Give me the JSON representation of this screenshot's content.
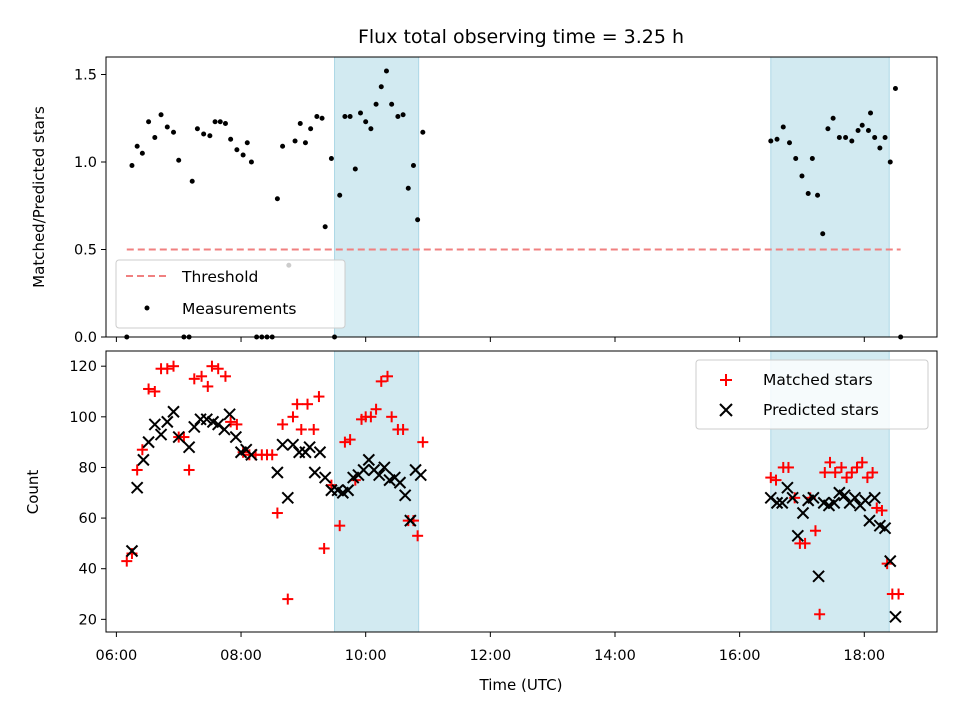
{
  "chart_data": [
    {
      "type": "scatter",
      "title": "Flux total observing time = 3.25 h",
      "xlabel": "",
      "ylabel": "Matched/Predicted stars",
      "xlim": [
        "05:50",
        "19:10"
      ],
      "ylim": [
        0,
        1.6
      ],
      "yticks": [
        "0.0",
        "0.5",
        "1.0",
        "1.5"
      ],
      "grid": false,
      "legend_position": "lower-left",
      "shaded_intervals": [
        [
          "09:30",
          "10:51"
        ],
        [
          "16:30",
          "18:24"
        ]
      ],
      "shade_color": "#add8e6",
      "threshold": {
        "name": "Threshold",
        "value": 0.5,
        "x_range": [
          "06:10",
          "18:35"
        ],
        "color": "#f08080"
      },
      "series": [
        {
          "name": "Measurements",
          "color": "#000000",
          "marker": "dot",
          "points": [
            [
              "06:10",
              0.0
            ],
            [
              "06:15",
              0.98
            ],
            [
              "06:20",
              1.09
            ],
            [
              "06:25",
              1.05
            ],
            [
              "06:31",
              1.23
            ],
            [
              "06:37",
              1.14
            ],
            [
              "06:43",
              1.27
            ],
            [
              "06:49",
              1.2
            ],
            [
              "06:55",
              1.17
            ],
            [
              "07:00",
              1.01
            ],
            [
              "07:05",
              0.0
            ],
            [
              "07:10",
              0.0
            ],
            [
              "07:13",
              0.89
            ],
            [
              "07:18",
              1.19
            ],
            [
              "07:24",
              1.16
            ],
            [
              "07:30",
              1.15
            ],
            [
              "07:35",
              1.23
            ],
            [
              "07:40",
              1.23
            ],
            [
              "07:45",
              1.22
            ],
            [
              "07:50",
              1.13
            ],
            [
              "07:56",
              1.07
            ],
            [
              "08:02",
              1.04
            ],
            [
              "08:06",
              1.11
            ],
            [
              "08:10",
              1.0
            ],
            [
              "08:15",
              0.0
            ],
            [
              "08:20",
              0.0
            ],
            [
              "08:25",
              0.0
            ],
            [
              "08:30",
              0.0
            ],
            [
              "08:35",
              0.79
            ],
            [
              "08:40",
              1.09
            ],
            [
              "08:46",
              0.41
            ],
            [
              "08:52",
              1.12
            ],
            [
              "08:57",
              1.22
            ],
            [
              "09:02",
              1.11
            ],
            [
              "09:07",
              1.19
            ],
            [
              "09:13",
              1.26
            ],
            [
              "09:18",
              1.25
            ],
            [
              "09:21",
              0.63
            ],
            [
              "09:27",
              1.02
            ],
            [
              "09:30",
              0.0
            ],
            [
              "09:35",
              0.81
            ],
            [
              "09:40",
              1.26
            ],
            [
              "09:45",
              1.26
            ],
            [
              "09:50",
              0.96
            ],
            [
              "09:55",
              1.28
            ],
            [
              "10:00",
              1.23
            ],
            [
              "10:05",
              1.19
            ],
            [
              "10:10",
              1.33
            ],
            [
              "10:15",
              1.43
            ],
            [
              "10:20",
              1.52
            ],
            [
              "10:25",
              1.33
            ],
            [
              "10:31",
              1.26
            ],
            [
              "10:36",
              1.27
            ],
            [
              "10:41",
              0.85
            ],
            [
              "10:46",
              0.98
            ],
            [
              "10:50",
              0.67
            ],
            [
              "10:55",
              1.17
            ],
            [
              "16:30",
              1.12
            ],
            [
              "16:36",
              1.13
            ],
            [
              "16:42",
              1.2
            ],
            [
              "16:48",
              1.11
            ],
            [
              "16:54",
              1.02
            ],
            [
              "17:00",
              0.92
            ],
            [
              "17:06",
              0.82
            ],
            [
              "17:10",
              1.02
            ],
            [
              "17:15",
              0.81
            ],
            [
              "17:20",
              0.59
            ],
            [
              "17:25",
              1.19
            ],
            [
              "17:30",
              1.25
            ],
            [
              "17:36",
              1.14
            ],
            [
              "17:42",
              1.14
            ],
            [
              "17:48",
              1.12
            ],
            [
              "17:54",
              1.18
            ],
            [
              "17:58",
              1.21
            ],
            [
              "18:04",
              1.18
            ],
            [
              "18:06",
              1.28
            ],
            [
              "18:10",
              1.14
            ],
            [
              "18:15",
              1.08
            ],
            [
              "18:20",
              1.14
            ],
            [
              "18:25",
              1.0
            ],
            [
              "18:30",
              1.42
            ],
            [
              "18:35",
              0.0
            ]
          ]
        }
      ]
    },
    {
      "type": "scatter",
      "title": "",
      "xlabel": "Time (UTC)",
      "ylabel": "Count",
      "xlim": [
        "05:50",
        "19:10"
      ],
      "ylim": [
        15,
        126
      ],
      "yticks": [
        "20",
        "40",
        "60",
        "80",
        "100",
        "120"
      ],
      "xticks": [
        "06:00",
        "08:00",
        "10:00",
        "12:00",
        "14:00",
        "16:00",
        "18:00"
      ],
      "grid": false,
      "legend_position": "upper-right",
      "shaded_intervals": [
        [
          "09:30",
          "10:51"
        ],
        [
          "16:30",
          "18:24"
        ]
      ],
      "shade_color": "#add8e6",
      "series": [
        {
          "name": "Matched stars",
          "color": "#ff0000",
          "marker": "plus",
          "points": [
            [
              "06:10",
              43
            ],
            [
              "06:15",
              46
            ],
            [
              "06:20",
              79
            ],
            [
              "06:25",
              87
            ],
            [
              "06:31",
              111
            ],
            [
              "06:37",
              110
            ],
            [
              "06:43",
              119
            ],
            [
              "06:49",
              119
            ],
            [
              "06:55",
              120
            ],
            [
              "07:00",
              92
            ],
            [
              "07:05",
              92
            ],
            [
              "07:10",
              79
            ],
            [
              "07:15",
              115
            ],
            [
              "07:22",
              116
            ],
            [
              "07:28",
              112
            ],
            [
              "07:32",
              120
            ],
            [
              "07:38",
              119
            ],
            [
              "07:45",
              116
            ],
            [
              "07:50",
              98
            ],
            [
              "07:56",
              97
            ],
            [
              "08:02",
              86
            ],
            [
              "08:08",
              85
            ],
            [
              "08:14",
              85
            ],
            [
              "08:20",
              85
            ],
            [
              "08:25",
              85
            ],
            [
              "08:30",
              85
            ],
            [
              "08:35",
              62
            ],
            [
              "08:40",
              97
            ],
            [
              "08:45",
              28
            ],
            [
              "08:50",
              100
            ],
            [
              "08:54",
              105
            ],
            [
              "08:58",
              95
            ],
            [
              "09:04",
              105
            ],
            [
              "09:10",
              95
            ],
            [
              "09:15",
              108
            ],
            [
              "09:20",
              48
            ],
            [
              "09:27",
              73
            ],
            [
              "09:35",
              57
            ],
            [
              "09:40",
              90
            ],
            [
              "09:45",
              91
            ],
            [
              "09:50",
              75
            ],
            [
              "09:56",
              99
            ],
            [
              "10:00",
              100
            ],
            [
              "10:05",
              100
            ],
            [
              "10:10",
              103
            ],
            [
              "10:15",
              114
            ],
            [
              "10:21",
              116
            ],
            [
              "10:25",
              100
            ],
            [
              "10:31",
              95
            ],
            [
              "10:36",
              95
            ],
            [
              "10:41",
              59
            ],
            [
              "10:46",
              59
            ],
            [
              "10:50",
              53
            ],
            [
              "10:55",
              90
            ],
            [
              "16:30",
              76
            ],
            [
              "16:35",
              75
            ],
            [
              "16:42",
              80
            ],
            [
              "16:47",
              80
            ],
            [
              "16:53",
              68
            ],
            [
              "16:58",
              50
            ],
            [
              "17:03",
              50
            ],
            [
              "17:08",
              68
            ],
            [
              "17:13",
              55
            ],
            [
              "17:17",
              22
            ],
            [
              "17:22",
              78
            ],
            [
              "17:27",
              82
            ],
            [
              "17:32",
              78
            ],
            [
              "17:38",
              80
            ],
            [
              "17:43",
              76
            ],
            [
              "17:48",
              78
            ],
            [
              "17:53",
              80
            ],
            [
              "17:58",
              82
            ],
            [
              "18:03",
              76
            ],
            [
              "18:08",
              78
            ],
            [
              "18:12",
              64
            ],
            [
              "18:17",
              63
            ],
            [
              "18:22",
              42
            ],
            [
              "18:27",
              30
            ],
            [
              "18:33",
              30
            ]
          ]
        },
        {
          "name": "Predicted stars",
          "color": "#000000",
          "marker": "x",
          "points": [
            [
              "06:15",
              47
            ],
            [
              "06:20",
              72
            ],
            [
              "06:26",
              83
            ],
            [
              "06:31",
              90
            ],
            [
              "06:37",
              97
            ],
            [
              "06:43",
              93
            ],
            [
              "06:49",
              98
            ],
            [
              "06:55",
              102
            ],
            [
              "07:00",
              92
            ],
            [
              "07:10",
              88
            ],
            [
              "07:15",
              96
            ],
            [
              "07:21",
              99
            ],
            [
              "07:27",
              99
            ],
            [
              "07:33",
              98
            ],
            [
              "07:38",
              97
            ],
            [
              "07:44",
              95
            ],
            [
              "07:49",
              101
            ],
            [
              "07:55",
              92
            ],
            [
              "08:00",
              86
            ],
            [
              "08:05",
              87
            ],
            [
              "08:10",
              85
            ],
            [
              "08:35",
              78
            ],
            [
              "08:40",
              89
            ],
            [
              "08:45",
              68
            ],
            [
              "08:50",
              89
            ],
            [
              "08:56",
              86
            ],
            [
              "09:02",
              86
            ],
            [
              "09:06",
              88
            ],
            [
              "09:11",
              78
            ],
            [
              "09:16",
              86
            ],
            [
              "09:21",
              76
            ],
            [
              "09:27",
              71
            ],
            [
              "09:33",
              71
            ],
            [
              "09:38",
              70
            ],
            [
              "09:43",
              71
            ],
            [
              "09:48",
              76
            ],
            [
              "09:53",
              77
            ],
            [
              "09:58",
              79
            ],
            [
              "10:03",
              83
            ],
            [
              "10:08",
              79
            ],
            [
              "10:13",
              77
            ],
            [
              "10:18",
              80
            ],
            [
              "10:23",
              75
            ],
            [
              "10:28",
              76
            ],
            [
              "10:33",
              74
            ],
            [
              "10:38",
              69
            ],
            [
              "10:43",
              59
            ],
            [
              "10:48",
              79
            ],
            [
              "10:53",
              77
            ],
            [
              "16:30",
              68
            ],
            [
              "16:36",
              66
            ],
            [
              "16:41",
              66
            ],
            [
              "16:46",
              72
            ],
            [
              "16:51",
              68
            ],
            [
              "16:56",
              53
            ],
            [
              "17:01",
              62
            ],
            [
              "17:06",
              67
            ],
            [
              "17:11",
              68
            ],
            [
              "17:16",
              37
            ],
            [
              "17:21",
              66
            ],
            [
              "17:26",
              65
            ],
            [
              "17:31",
              66
            ],
            [
              "17:36",
              70
            ],
            [
              "17:41",
              69
            ],
            [
              "17:46",
              66
            ],
            [
              "17:51",
              68
            ],
            [
              "17:56",
              65
            ],
            [
              "18:01",
              67
            ],
            [
              "18:05",
              59
            ],
            [
              "18:10",
              68
            ],
            [
              "18:15",
              57
            ],
            [
              "18:20",
              56
            ],
            [
              "18:25",
              43
            ],
            [
              "18:30",
              21
            ]
          ]
        }
      ]
    }
  ]
}
